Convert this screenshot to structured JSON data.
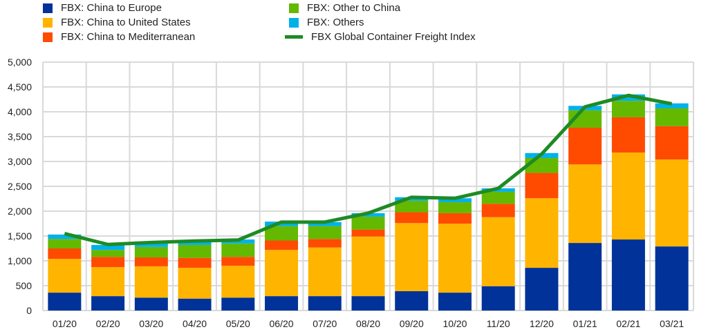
{
  "chart_data": {
    "type": "bar",
    "stacked": true,
    "categories": [
      "01/20",
      "02/20",
      "03/20",
      "04/20",
      "05/20",
      "06/20",
      "07/20",
      "08/20",
      "09/20",
      "10/20",
      "11/20",
      "12/20",
      "01/21",
      "02/21",
      "03/21"
    ],
    "series": [
      {
        "name": "FBX: China to Europe",
        "color": "#003299",
        "values": [
          360,
          290,
          260,
          240,
          260,
          290,
          290,
          290,
          390,
          360,
          490,
          860,
          1360,
          1430,
          1290
        ]
      },
      {
        "name": "FBX: China to United States",
        "color": "#FFB400",
        "values": [
          680,
          585,
          630,
          620,
          640,
          930,
          980,
          1200,
          1370,
          1390,
          1390,
          1400,
          1580,
          1750,
          1750
        ]
      },
      {
        "name": "FBX: China to Mediterranean",
        "color": "#FF4B00",
        "values": [
          210,
          205,
          180,
          200,
          180,
          190,
          170,
          140,
          220,
          210,
          270,
          510,
          740,
          710,
          670
        ]
      },
      {
        "name": "FBX: Other to China",
        "color": "#65B800",
        "values": [
          190,
          140,
          210,
          260,
          270,
          290,
          260,
          260,
          230,
          220,
          240,
          300,
          350,
          330,
          360
        ]
      },
      {
        "name": "FBX: Others",
        "color": "#00B1EA",
        "values": [
          90,
          100,
          110,
          80,
          80,
          90,
          80,
          70,
          70,
          80,
          70,
          100,
          90,
          130,
          100
        ]
      }
    ],
    "line": {
      "name": "FBX Global Container Freight Index",
      "color": "#1E8B24",
      "values": [
        1550,
        1330,
        1370,
        1400,
        1420,
        1780,
        1780,
        1960,
        2280,
        2260,
        2460,
        3150,
        4100,
        4330,
        4160
      ]
    },
    "yticks": [
      "0",
      "500",
      "1,000",
      "1,500",
      "2,000",
      "2,500",
      "3,000",
      "3,500",
      "4,000",
      "4,500",
      "5,000"
    ],
    "ylim": [
      0,
      5000
    ],
    "grid": true,
    "legend": "top"
  }
}
